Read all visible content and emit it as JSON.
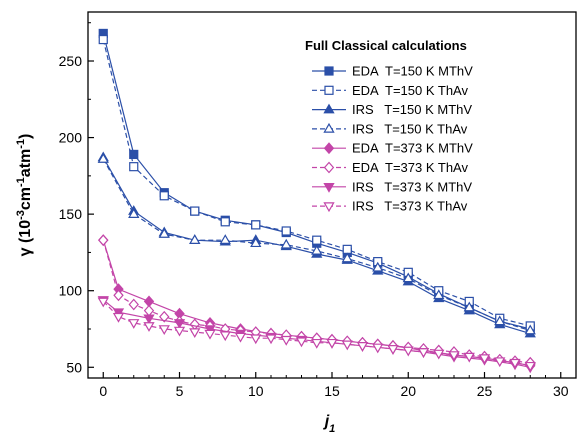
{
  "chart_data": {
    "type": "line",
    "title": "",
    "xlabel": "j",
    "xlabel_sub": "1",
    "ylabel": "γ (10",
    "ylabel_exp1": "-3",
    "ylabel_mid": "cm",
    "ylabel_exp2": "-1",
    "ylabel_mid2": "atm",
    "ylabel_exp3": "-1",
    "ylabel_end": ")",
    "xlim": [
      -1,
      31
    ],
    "ylim": [
      43,
      282
    ],
    "xticks": [
      0,
      5,
      10,
      15,
      20,
      25,
      30
    ],
    "xtick_labels": [
      "0",
      "5",
      "10",
      "15",
      "20",
      "25",
      "30"
    ],
    "yticks": [
      50,
      100,
      150,
      200,
      250
    ],
    "ytick_labels": [
      "50",
      "100",
      "150",
      "200",
      "250"
    ],
    "legend_title": "Full Classical calculations",
    "legend_position": "top-right",
    "grid": false,
    "colors": {
      "blue": "#2b4fa8",
      "magenta": "#c345a8"
    },
    "series": [
      {
        "name": "EDA  T=150 K MThV",
        "color": "#2b4fa8",
        "dash": false,
        "marker": "square",
        "filled": true,
        "x": [
          0,
          2,
          4,
          6,
          8,
          10,
          12,
          14,
          16,
          18,
          20,
          22,
          24,
          26,
          28
        ],
        "y": [
          268,
          189,
          164,
          152,
          146,
          143,
          138,
          131,
          125,
          118,
          109,
          98,
          89,
          80,
          75
        ]
      },
      {
        "name": "EDA  T=150 K ThAv",
        "color": "#2b4fa8",
        "dash": true,
        "marker": "square",
        "filled": false,
        "x": [
          0,
          2,
          4,
          6,
          8,
          10,
          12,
          14,
          16,
          18,
          20,
          22,
          24,
          26,
          28
        ],
        "y": [
          264,
          181,
          162,
          152,
          145,
          143,
          139,
          133,
          127,
          119,
          112,
          100,
          93,
          82,
          77
        ]
      },
      {
        "name": "IRS   T=150 K MThV",
        "color": "#2b4fa8",
        "dash": false,
        "marker": "triangle-up",
        "filled": true,
        "x": [
          0,
          2,
          4,
          6,
          8,
          10,
          12,
          14,
          16,
          18,
          20,
          22,
          24,
          26,
          28
        ],
        "y": [
          187,
          152,
          138,
          133,
          132,
          133,
          129,
          124,
          120,
          113,
          106,
          95,
          87,
          78,
          72
        ]
      },
      {
        "name": "IRS   T=150 K ThAv",
        "color": "#2b4fa8",
        "dash": true,
        "marker": "triangle-up",
        "filled": false,
        "x": [
          0,
          2,
          4,
          6,
          8,
          10,
          12,
          14,
          16,
          18,
          20,
          22,
          24,
          26,
          28
        ],
        "y": [
          186,
          150,
          137,
          133,
          133,
          131,
          130,
          126,
          121,
          115,
          108,
          97,
          89,
          80,
          74
        ]
      },
      {
        "name": "EDA  T=373 K MThV",
        "color": "#c345a8",
        "dash": false,
        "marker": "diamond",
        "filled": true,
        "x": [
          0,
          1,
          3,
          5,
          7,
          9,
          11,
          13,
          15,
          17,
          19,
          21,
          23,
          25,
          27,
          28
        ],
        "y": [
          133,
          101,
          93,
          85,
          79,
          75,
          72,
          70,
          68,
          66,
          64,
          61,
          58,
          56,
          53,
          51
        ]
      },
      {
        "name": "EDA  T=373 K ThAv",
        "color": "#c345a8",
        "dash": true,
        "marker": "diamond",
        "filled": false,
        "x": [
          0,
          1,
          2,
          3,
          4,
          5,
          6,
          7,
          8,
          9,
          10,
          11,
          12,
          13,
          14,
          15,
          16,
          17,
          18,
          19,
          20,
          21,
          22,
          23,
          24,
          25,
          26,
          27,
          28
        ],
        "y": [
          133,
          97,
          91,
          87,
          83,
          80,
          78,
          77,
          75,
          74,
          73,
          72,
          71,
          70,
          69,
          68,
          67,
          66,
          65,
          64,
          63,
          62,
          61,
          60,
          58,
          57,
          55,
          54,
          53
        ]
      },
      {
        "name": "IRS   T=373 K MThV",
        "color": "#c345a8",
        "dash": false,
        "marker": "triangle-down",
        "filled": true,
        "x": [
          0,
          1,
          3,
          5,
          7,
          9,
          11,
          13,
          15,
          17,
          19,
          21,
          23,
          25,
          27,
          28
        ],
        "y": [
          94,
          86,
          82,
          79,
          75,
          72,
          70,
          68,
          66,
          64,
          62,
          60,
          57,
          55,
          52,
          50
        ]
      },
      {
        "name": "IRS   T=373 K ThAv",
        "color": "#c345a8",
        "dash": true,
        "marker": "triangle-down",
        "filled": false,
        "x": [
          0,
          1,
          2,
          3,
          4,
          5,
          6,
          7,
          8,
          9,
          10,
          11,
          12,
          13,
          14,
          15,
          16,
          17,
          18,
          19,
          20,
          21,
          22,
          23,
          24,
          25,
          26,
          27,
          28
        ],
        "y": [
          93,
          83,
          79,
          77,
          75,
          74,
          73,
          72,
          71,
          70,
          69,
          69,
          68,
          67,
          66,
          66,
          65,
          64,
          63,
          62,
          61,
          60,
          59,
          58,
          57,
          56,
          54,
          53,
          51
        ]
      }
    ]
  }
}
